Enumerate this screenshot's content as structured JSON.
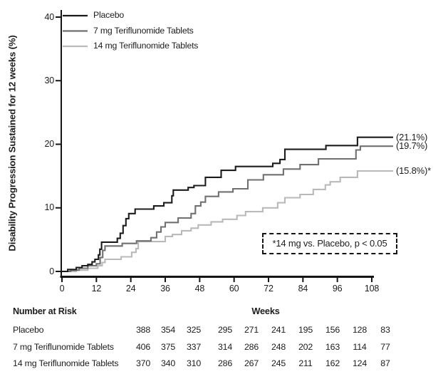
{
  "chart_data": {
    "type": "line",
    "subtype": "kaplan-meier-step",
    "title": "",
    "ylabel": "Disability Progression Sustained for 12 weeks (%)",
    "xlabel": "Weeks",
    "xlim": [
      0,
      108
    ],
    "ylim": [
      0,
      40
    ],
    "xticks": [
      0,
      12,
      24,
      36,
      48,
      60,
      72,
      84,
      96,
      108
    ],
    "yticks": [
      0,
      10,
      20,
      30,
      40
    ],
    "grid": false,
    "legend_position": "top-left-inside",
    "axis_color": "#151515",
    "series": [
      {
        "name": "Placebo",
        "color": "#1c1c1c",
        "final_value": 21.1,
        "end_label": "(21.1%)",
        "steps": [
          [
            0,
            0
          ],
          [
            2,
            0.3
          ],
          [
            5,
            0.6
          ],
          [
            7,
            0.9
          ],
          [
            9,
            1.1
          ],
          [
            10.5,
            1.5
          ],
          [
            11.5,
            1.9
          ],
          [
            12.7,
            2.6
          ],
          [
            13.2,
            3.5
          ],
          [
            13.8,
            4.6
          ],
          [
            19.3,
            5.2
          ],
          [
            20.3,
            6.0
          ],
          [
            21.3,
            7.2
          ],
          [
            22.3,
            8.3
          ],
          [
            23.3,
            9.1
          ],
          [
            25.5,
            9.8
          ],
          [
            32,
            10.3
          ],
          [
            35.5,
            10.8
          ],
          [
            38.3,
            11.9
          ],
          [
            38.8,
            12.8
          ],
          [
            44,
            13.2
          ],
          [
            46,
            13.5
          ],
          [
            50,
            14.8
          ],
          [
            55.5,
            15.9
          ],
          [
            60.5,
            16.5
          ],
          [
            73.5,
            17.0
          ],
          [
            76,
            17.6
          ],
          [
            77.7,
            19.2
          ],
          [
            92,
            19.8
          ],
          [
            103,
            21.1
          ],
          [
            108,
            21.1
          ]
        ]
      },
      {
        "name": "7 mg Teriflunomide Tablets",
        "color": "#707070",
        "final_value": 19.7,
        "end_label": "(19.7%)",
        "steps": [
          [
            0,
            0
          ],
          [
            3,
            0.2
          ],
          [
            6,
            0.5
          ],
          [
            9,
            0.9
          ],
          [
            12,
            1.2
          ],
          [
            13.3,
            2.2
          ],
          [
            14.2,
            3.3
          ],
          [
            15,
            4.0
          ],
          [
            21,
            4.4
          ],
          [
            26,
            4.8
          ],
          [
            31,
            5.3
          ],
          [
            33,
            6.2
          ],
          [
            34.5,
            7.0
          ],
          [
            36,
            7.7
          ],
          [
            40.5,
            8.4
          ],
          [
            45,
            9.1
          ],
          [
            46.5,
            10.3
          ],
          [
            48.4,
            10.9
          ],
          [
            50,
            11.8
          ],
          [
            54.6,
            12.5
          ],
          [
            59.6,
            13.0
          ],
          [
            64.8,
            14.4
          ],
          [
            70.2,
            15.2
          ],
          [
            77.2,
            16.1
          ],
          [
            83,
            16.8
          ],
          [
            89.4,
            17.7
          ],
          [
            102.5,
            19.1
          ],
          [
            104,
            19.7
          ],
          [
            108,
            19.7
          ]
        ]
      },
      {
        "name": "14 mg Teriflunomide Tablets",
        "color": "#b9b9b9",
        "final_value": 15.8,
        "end_label": "(15.8%)*",
        "steps": [
          [
            0,
            0
          ],
          [
            5,
            0.2
          ],
          [
            9,
            0.5
          ],
          [
            12.5,
            0.9
          ],
          [
            14,
            1.4
          ],
          [
            15,
            1.9
          ],
          [
            20.6,
            2.3
          ],
          [
            24.3,
            3.0
          ],
          [
            25.8,
            3.6
          ],
          [
            26.6,
            4.7
          ],
          [
            36,
            5.5
          ],
          [
            38.5,
            5.8
          ],
          [
            41.7,
            6.4
          ],
          [
            45,
            6.8
          ],
          [
            47.5,
            7.3
          ],
          [
            52,
            7.8
          ],
          [
            56,
            8.2
          ],
          [
            61,
            8.8
          ],
          [
            64,
            9.4
          ],
          [
            70,
            10.0
          ],
          [
            75.2,
            10.8
          ],
          [
            77.7,
            11.6
          ],
          [
            83,
            12.1
          ],
          [
            87.6,
            12.9
          ],
          [
            91.8,
            13.6
          ],
          [
            93.5,
            14.1
          ],
          [
            97,
            14.8
          ],
          [
            103,
            15.8
          ],
          [
            108,
            15.8
          ]
        ]
      }
    ],
    "annotation_box": "*14 mg vs. Placebo, p < 0.05"
  },
  "risk_table": {
    "header": "Number at Risk",
    "rows": [
      {
        "label": "Placebo",
        "values": [
          "388",
          "354",
          "325",
          "295",
          "271",
          "241",
          "195",
          "156",
          "128",
          "83"
        ]
      },
      {
        "label": "7 mg Teriflunomide Tablets",
        "values": [
          "406",
          "375",
          "337",
          "314",
          "286",
          "248",
          "202",
          "163",
          "114",
          "77"
        ]
      },
      {
        "label": "14 mg Teriflunomide Tablets",
        "values": [
          "370",
          "340",
          "310",
          "286",
          "267",
          "245",
          "211",
          "162",
          "124",
          "87"
        ]
      }
    ]
  }
}
